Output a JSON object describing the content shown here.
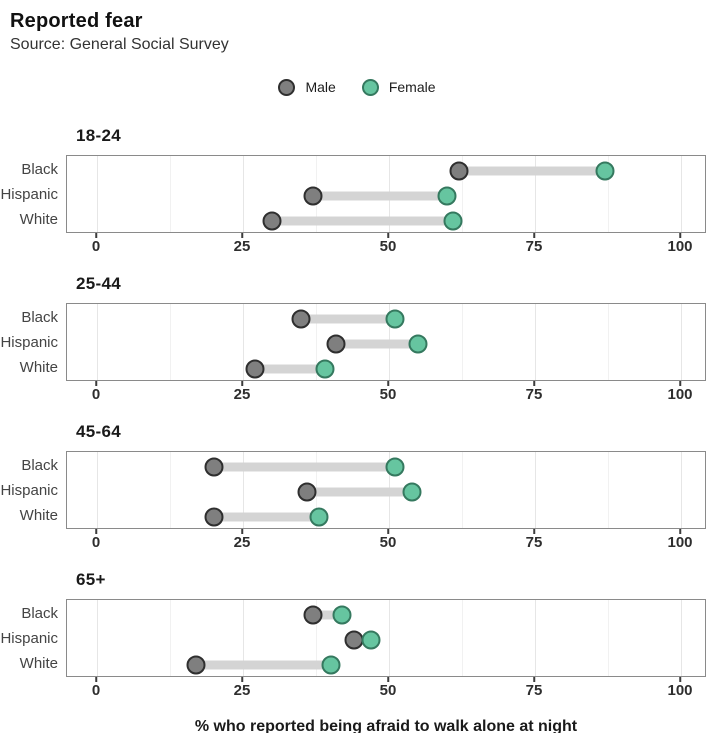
{
  "header": {
    "title": "Reported fear",
    "subtitle": "Source: General Social Survey"
  },
  "legend": {
    "items": [
      {
        "id": "male",
        "label": "Male",
        "fill": "#7f7f7f",
        "stroke": "#2f2f2f"
      },
      {
        "id": "female",
        "label": "Female",
        "fill": "#66c5a0",
        "stroke": "#35795f"
      }
    ]
  },
  "chart_data": {
    "type": "dumbbell",
    "title": "Reported fear",
    "subtitle": "Source: General Social Survey",
    "xlabel": "% who reported being afraid to walk alone at night",
    "x_ticks": [
      0,
      25,
      50,
      75,
      100
    ],
    "x_minor_ticks": [
      12.5,
      37.5,
      62.5,
      87.5
    ],
    "xlim": [
      -5,
      104.5
    ],
    "grid": "vertical major and minor gridlines, light gray, panel border gray",
    "legend_position": "top-center",
    "series_names": [
      "Male",
      "Female"
    ],
    "categories": [
      "Black",
      "Hispanic",
      "White"
    ],
    "facets": [
      {
        "label": "18-24",
        "rows": [
          {
            "category": "Black",
            "male": 62,
            "female": 87
          },
          {
            "category": "Hispanic",
            "male": 37,
            "female": 60
          },
          {
            "category": "White",
            "male": 30,
            "female": 61
          }
        ]
      },
      {
        "label": "25-44",
        "rows": [
          {
            "category": "Black",
            "male": 35,
            "female": 51
          },
          {
            "category": "Hispanic",
            "male": 41,
            "female": 55
          },
          {
            "category": "White",
            "male": 27,
            "female": 39
          }
        ]
      },
      {
        "label": "45-64",
        "rows": [
          {
            "category": "Black",
            "male": 20,
            "female": 51
          },
          {
            "category": "Hispanic",
            "male": 36,
            "female": 54
          },
          {
            "category": "White",
            "male": 20,
            "female": 38
          }
        ]
      },
      {
        "label": "65+",
        "rows": [
          {
            "category": "Black",
            "male": 37,
            "female": 42
          },
          {
            "category": "Hispanic",
            "male": 44,
            "female": 47
          },
          {
            "category": "White",
            "male": 17,
            "female": 40
          }
        ]
      }
    ],
    "colors": {
      "male_fill": "#7f7f7f",
      "male_stroke": "#2f2f2f",
      "female_fill": "#66c5a0",
      "female_stroke": "#35795f",
      "connector": "#d4d4d4",
      "gridline_major": "#e6e6e6",
      "gridline_minor": "#f1f1f1",
      "panel_border": "#8a8a8a"
    }
  }
}
